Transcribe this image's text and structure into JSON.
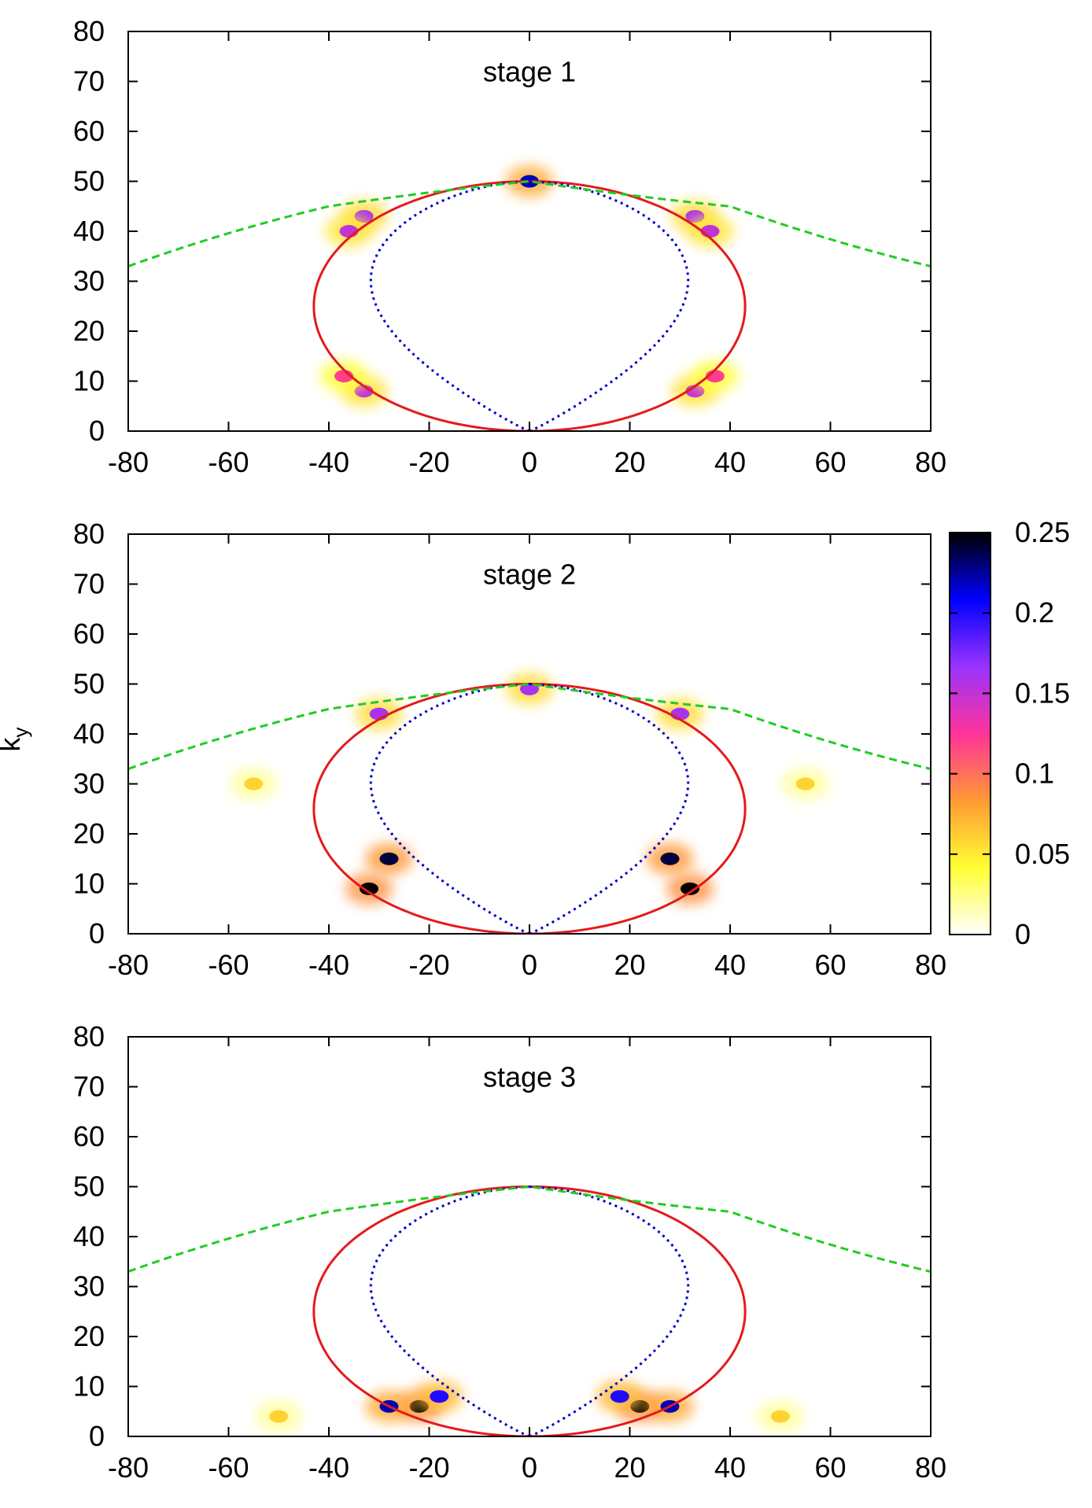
{
  "chart_data": [
    {
      "type": "heatmap",
      "title": "stage 1",
      "xlabel": "",
      "ylabel": "",
      "xlim": [
        -80,
        80
      ],
      "ylim": [
        0,
        80
      ],
      "xticks": [
        -80,
        -60,
        -40,
        -20,
        0,
        20,
        40,
        60,
        80
      ],
      "yticks": [
        0,
        10,
        20,
        30,
        40,
        50,
        60,
        70,
        80
      ],
      "hotspots": [
        {
          "x": 0,
          "y": 50,
          "value": 0.22
        },
        {
          "x": -33,
          "y": 43,
          "value": 0.16
        },
        {
          "x": 33,
          "y": 43,
          "value": 0.16
        },
        {
          "x": -36,
          "y": 40,
          "value": 0.15
        },
        {
          "x": 36,
          "y": 40,
          "value": 0.15
        },
        {
          "x": -33,
          "y": 8,
          "value": 0.15
        },
        {
          "x": 33,
          "y": 8,
          "value": 0.15
        },
        {
          "x": -37,
          "y": 11,
          "value": 0.12
        },
        {
          "x": 37,
          "y": 11,
          "value": 0.12
        }
      ],
      "curves": [
        {
          "name": "ellipse",
          "color": "#e41a1c",
          "style": "solid",
          "center": [
            0,
            25
          ],
          "semi_axes": [
            43,
            25
          ]
        },
        {
          "name": "inner-curve",
          "color": "#0000cc",
          "style": "dotted",
          "x_max": 35,
          "y_range": [
            0,
            50
          ]
        },
        {
          "name": "tangent-curve",
          "color": "#22cc22",
          "style": "dashed",
          "points": [
            [
              -80,
              33
            ],
            [
              -40,
              45
            ],
            [
              0,
              50
            ],
            [
              40,
              45
            ],
            [
              80,
              33
            ]
          ]
        }
      ]
    },
    {
      "type": "heatmap",
      "title": "stage 2",
      "xlabel": "",
      "ylabel": "k_y",
      "xlim": [
        -80,
        80
      ],
      "ylim": [
        0,
        80
      ],
      "xticks": [
        -80,
        -60,
        -40,
        -20,
        0,
        20,
        40,
        60,
        80
      ],
      "yticks": [
        0,
        10,
        20,
        30,
        40,
        50,
        60,
        70,
        80
      ],
      "hotspots": [
        {
          "x": -32,
          "y": 9,
          "value": 0.25
        },
        {
          "x": 32,
          "y": 9,
          "value": 0.25
        },
        {
          "x": -28,
          "y": 15,
          "value": 0.24
        },
        {
          "x": 28,
          "y": 15,
          "value": 0.24
        },
        {
          "x": -30,
          "y": 44,
          "value": 0.16
        },
        {
          "x": 30,
          "y": 44,
          "value": 0.16
        },
        {
          "x": 0,
          "y": 49,
          "value": 0.16
        },
        {
          "x": -55,
          "y": 30,
          "value": 0.06
        },
        {
          "x": 55,
          "y": 30,
          "value": 0.06
        }
      ],
      "curves": [
        {
          "name": "ellipse",
          "color": "#e41a1c",
          "style": "solid",
          "center": [
            0,
            25
          ],
          "semi_axes": [
            43,
            25
          ]
        },
        {
          "name": "inner-curve",
          "color": "#0000cc",
          "style": "dotted",
          "x_max": 35,
          "y_range": [
            0,
            50
          ]
        },
        {
          "name": "tangent-curve",
          "color": "#22cc22",
          "style": "dashed",
          "points": [
            [
              -80,
              33
            ],
            [
              -40,
              45
            ],
            [
              0,
              50
            ],
            [
              40,
              45
            ],
            [
              80,
              33
            ]
          ]
        }
      ]
    },
    {
      "type": "heatmap",
      "title": "stage 3",
      "xlabel": "",
      "ylabel": "",
      "xlim": [
        -80,
        80
      ],
      "ylim": [
        0,
        80
      ],
      "xticks": [
        -80,
        -60,
        -40,
        -20,
        0,
        20,
        40,
        60,
        80
      ],
      "yticks": [
        0,
        10,
        20,
        30,
        40,
        50,
        60,
        70,
        80
      ],
      "hotspots": [
        {
          "x": -22,
          "y": 6,
          "value": 0.25
        },
        {
          "x": 22,
          "y": 6,
          "value": 0.25
        },
        {
          "x": -28,
          "y": 6,
          "value": 0.22
        },
        {
          "x": 28,
          "y": 6,
          "value": 0.22
        },
        {
          "x": -18,
          "y": 8,
          "value": 0.2
        },
        {
          "x": 18,
          "y": 8,
          "value": 0.2
        },
        {
          "x": -50,
          "y": 4,
          "value": 0.06
        },
        {
          "x": 50,
          "y": 4,
          "value": 0.06
        }
      ],
      "curves": [
        {
          "name": "ellipse",
          "color": "#e41a1c",
          "style": "solid",
          "center": [
            0,
            25
          ],
          "semi_axes": [
            43,
            25
          ]
        },
        {
          "name": "inner-curve",
          "color": "#0000cc",
          "style": "dotted",
          "x_max": 35,
          "y_range": [
            0,
            50
          ]
        },
        {
          "name": "tangent-curve",
          "color": "#22cc22",
          "style": "dashed",
          "points": [
            [
              -80,
              33
            ],
            [
              -40,
              45
            ],
            [
              0,
              50
            ],
            [
              40,
              45
            ],
            [
              80,
              33
            ]
          ]
        }
      ]
    }
  ],
  "colorbar": {
    "range": [
      0,
      0.25
    ],
    "tick_labels": [
      "0",
      "0.05",
      "0.1",
      "0.15",
      "0.2",
      "0.25"
    ],
    "tick_values": [
      0,
      0.05,
      0.1,
      0.15,
      0.2,
      0.25
    ],
    "stops": [
      "#ffffff",
      "#ffff33",
      "#ff9933",
      "#ff3399",
      "#9933ff",
      "#0000ff",
      "#000000"
    ]
  }
}
